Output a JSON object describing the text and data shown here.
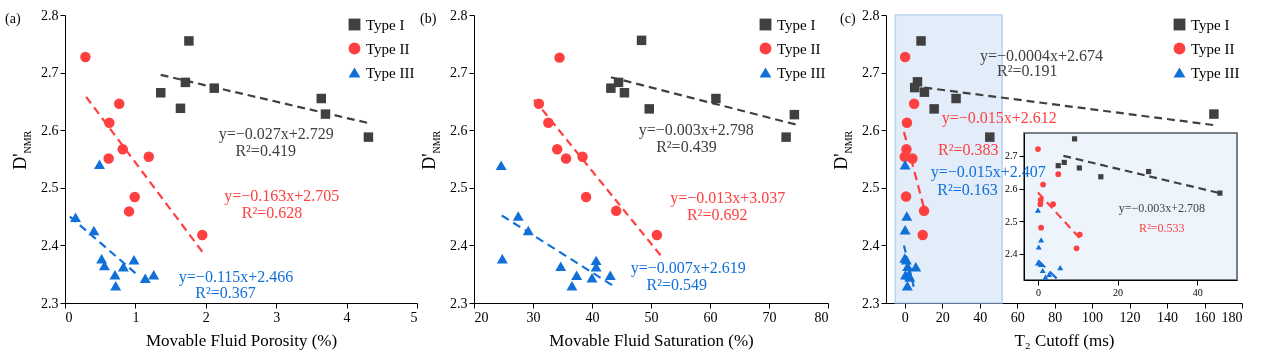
{
  "chart_data": [
    {
      "type": "scatter",
      "title": "(a)",
      "xlabel": "Movable Fluid Porosity (%)",
      "ylabel": "D'$_{NMR}$",
      "xlim": [
        0,
        5
      ],
      "ylim": [
        2.3,
        2.8
      ],
      "xticks": [
        0,
        1,
        2,
        3,
        4,
        5
      ],
      "yticks": [
        2.3,
        2.4,
        2.5,
        2.6,
        2.7,
        2.8
      ],
      "legend": "top right",
      "series": [
        {
          "name": "Type I",
          "marker": "square",
          "color": "#404040",
          "x": [
            1.76,
            1.71,
            1.36,
            2.12,
            1.64,
            3.64,
            3.7,
            4.31
          ],
          "values": [
            2.755,
            2.683,
            2.665,
            2.673,
            2.638,
            2.655,
            2.628,
            2.588
          ]
        },
        {
          "name": "Type II",
          "marker": "circle",
          "color": "#ff4040",
          "x": [
            0.29,
            0.63,
            0.77,
            0.62,
            0.82,
            1.19,
            0.99,
            0.91,
            1.95
          ],
          "values": [
            2.727,
            2.613,
            2.646,
            2.551,
            2.567,
            2.554,
            2.484,
            2.459,
            2.418
          ]
        },
        {
          "name": "Type III",
          "marker": "triangle",
          "color": "#1070d8",
          "x": [
            0.49,
            0.15,
            0.41,
            0.52,
            0.56,
            0.98,
            0.83,
            0.71,
            0.72,
            1.14,
            1.26
          ],
          "values": [
            2.541,
            2.449,
            2.426,
            2.377,
            2.365,
            2.375,
            2.363,
            2.349,
            2.33,
            2.343,
            2.349
          ]
        },
        {
          "type": "line",
          "line_style": "dashed",
          "color": "#404040",
          "x": [
            1.36,
            4.29
          ],
          "values": [
            2.696,
            2.613
          ]
        },
        {
          "type": "line",
          "line_style": "dashed",
          "color": "#ff4040",
          "x": [
            0.3,
            1.95
          ],
          "values": [
            2.658,
            2.389
          ]
        },
        {
          "type": "line",
          "line_style": "dashed",
          "color": "#1070d8",
          "x": [
            0.07,
            1.0
          ],
          "values": [
            2.45,
            2.352
          ]
        }
      ],
      "annotations": [
        "y=−0.027x+2.729",
        "R²=0.419",
        "y=−0.163x+2.705",
        "R²=0.628",
        "y=−0.115x+2.466",
        "R²=0.367"
      ]
    },
    {
      "type": "scatter",
      "title": "(b)",
      "xlabel": "Movable Fluid Saturation (%)",
      "ylabel": "D'$_{NMR}$",
      "xlim": [
        20,
        80
      ],
      "ylim": [
        2.3,
        2.8
      ],
      "xticks": [
        20,
        30,
        40,
        50,
        60,
        70,
        80
      ],
      "yticks": [
        2.3,
        2.4,
        2.5,
        2.6,
        2.7,
        2.8
      ],
      "legend": "top right",
      "series": [
        {
          "name": "Type I",
          "marker": "square",
          "color": "#404040",
          "x": [
            48.4,
            44.5,
            43.2,
            45.5,
            49.7,
            61.0,
            74.3,
            72.9
          ],
          "values": [
            2.756,
            2.683,
            2.673,
            2.665,
            2.637,
            2.655,
            2.627,
            2.588
          ]
        },
        {
          "name": "Type II",
          "marker": "circle",
          "color": "#ff4040",
          "x": [
            34.5,
            31.0,
            32.6,
            34.1,
            35.6,
            38.4,
            39.0,
            44.1,
            51.0
          ],
          "values": [
            2.726,
            2.646,
            2.613,
            2.567,
            2.551,
            2.554,
            2.484,
            2.46,
            2.418
          ]
        },
        {
          "name": "Type III",
          "marker": "triangle",
          "color": "#1070d8",
          "x": [
            24.6,
            27.5,
            29.2,
            24.8,
            34.7,
            37.4,
            36.6,
            40.7,
            40.7,
            40.0,
            43.1
          ],
          "values": [
            2.539,
            2.451,
            2.426,
            2.377,
            2.364,
            2.348,
            2.33,
            2.374,
            2.363,
            2.344,
            2.348
          ]
        },
        {
          "type": "line",
          "line_style": "dashed",
          "color": "#404040",
          "x": [
            43.2,
            74.5
          ],
          "values": [
            2.692,
            2.61
          ]
        },
        {
          "type": "line",
          "line_style": "dashed",
          "color": "#ff4040",
          "x": [
            30.2,
            51.6
          ],
          "values": [
            2.653,
            2.383
          ]
        },
        {
          "type": "line",
          "line_style": "dashed",
          "color": "#1070d8",
          "x": [
            24.7,
            43.4
          ],
          "values": [
            2.452,
            2.331
          ]
        }
      ],
      "annotations": [
        "y=−0.003x+2.798",
        "R²=0.439",
        "y=−0.013x+3.037",
        "R²=0.692",
        "y=−0.007x+2.619",
        "R²=0.549"
      ]
    },
    {
      "type": "scatter",
      "title": "(c)",
      "xlabel": "T₂ Cutoff (ms)",
      "ylabel": "D'$_{NMR}$",
      "xlim": [
        -10,
        180
      ],
      "ylim": [
        2.3,
        2.8
      ],
      "xticks": [
        0,
        20,
        40,
        60,
        80,
        100,
        120,
        140,
        160,
        180
      ],
      "yticks": [
        2.3,
        2.4,
        2.5,
        2.6,
        2.7,
        2.8
      ],
      "legend": "top right",
      "bands": [
        {
          "axis": "x",
          "from": -5,
          "to": 52,
          "color": "#dce9f8"
        }
      ],
      "series": [
        {
          "name": "Type I",
          "marker": "square",
          "color": "#404040",
          "x": [
            8.7,
            6.8,
            5.3,
            10.5,
            15.7,
            27.4,
            45.4,
            165
          ],
          "values": [
            2.755,
            2.684,
            2.674,
            2.666,
            2.637,
            2.655,
            2.588,
            2.628
          ]
        },
        {
          "name": "Type II",
          "marker": "circle",
          "color": "#ff4040",
          "x": [
            0.2,
            5.0,
            1.2,
            0.9,
            0,
            4.1,
            0.7,
            10.3,
            9.6
          ],
          "values": [
            2.727,
            2.646,
            2.613,
            2.567,
            2.554,
            2.551,
            2.485,
            2.46,
            2.418
          ]
        },
        {
          "name": "Type III",
          "marker": "triangle",
          "color": "#1070d8",
          "x": [
            0.2,
            1.1,
            0.2,
            0,
            0.9,
            1.6,
            5.9,
            0.4,
            2.7,
            1.4,
            2.1
          ],
          "values": [
            2.54,
            2.451,
            2.427,
            2.378,
            2.375,
            2.364,
            2.363,
            2.349,
            2.345,
            2.33,
            2.349
          ]
        },
        {
          "type": "line",
          "line_style": "dashed",
          "color": "#404040",
          "x": [
            10.5,
            164.6
          ],
          "values": [
            2.674,
            2.609
          ]
        },
        {
          "type": "line",
          "line_style": "dashed",
          "color": "#ff4040",
          "x": [
            -0.4,
            10.1
          ],
          "values": [
            2.597,
            2.467
          ]
        },
        {
          "type": "line",
          "line_style": "dashed",
          "color": "#1070d8",
          "x": [
            -0.4,
            4.8
          ],
          "values": [
            2.4,
            2.328
          ]
        }
      ],
      "annotations": [
        "y=−0.0004x+2.674",
        "R²=0.191",
        "y=−0.015x+2.612",
        "R²=0.383",
        "y=−0.015x+2.407",
        "R²=0.163"
      ]
    },
    {
      "type": "scatter",
      "xlim": [
        -3.5,
        50
      ],
      "ylim": [
        2.32,
        2.77
      ],
      "xticks": [
        0,
        20,
        40
      ],
      "yticks": [
        2.4,
        2.5,
        2.6,
        2.7
      ],
      "series": [
        {
          "marker": "square",
          "color": "#404040",
          "x": [
            9.2,
            5.1,
            6.6,
            10.4,
            15.8,
            27.8,
            45.7
          ],
          "values": [
            2.752,
            2.67,
            2.68,
            2.663,
            2.636,
            2.652,
            2.586
          ]
        },
        {
          "marker": "circle",
          "color": "#ff4040",
          "x": [
            0,
            5.1,
            1.3,
            0.7,
            0.6,
            3.8,
            0.8,
            10.5,
            9.7
          ],
          "values": [
            2.721,
            2.644,
            2.612,
            2.565,
            2.552,
            2.552,
            2.48,
            2.459,
            2.417
          ]
        },
        {
          "marker": "triangle",
          "color": "#1070d8",
          "x": [
            0,
            0.8,
            0.2,
            0,
            0.7,
            1.2,
            2.8,
            1.9,
            5.6
          ],
          "values": [
            2.534,
            2.443,
            2.421,
            2.372,
            2.368,
            2.349,
            2.337,
            2.329,
            2.358
          ]
        },
        {
          "type": "line",
          "line_style": "dashed",
          "color": "#404040",
          "x": [
            6.4,
            45.3
          ],
          "values": [
            2.7,
            2.587
          ]
        },
        {
          "type": "line",
          "line_style": "dashed",
          "color": "#ff4040",
          "x": [
            0,
            10.4
          ],
          "values": [
            2.588,
            2.449
          ]
        },
        {
          "type": "line",
          "line_style": "dashed",
          "color": "#1070d8",
          "x": [
            0,
            4.7
          ],
          "values": [
            2.38,
            2.325
          ]
        }
      ],
      "annotations": [
        "y=−0.003x+2.708",
        "R²=0.533"
      ]
    }
  ]
}
